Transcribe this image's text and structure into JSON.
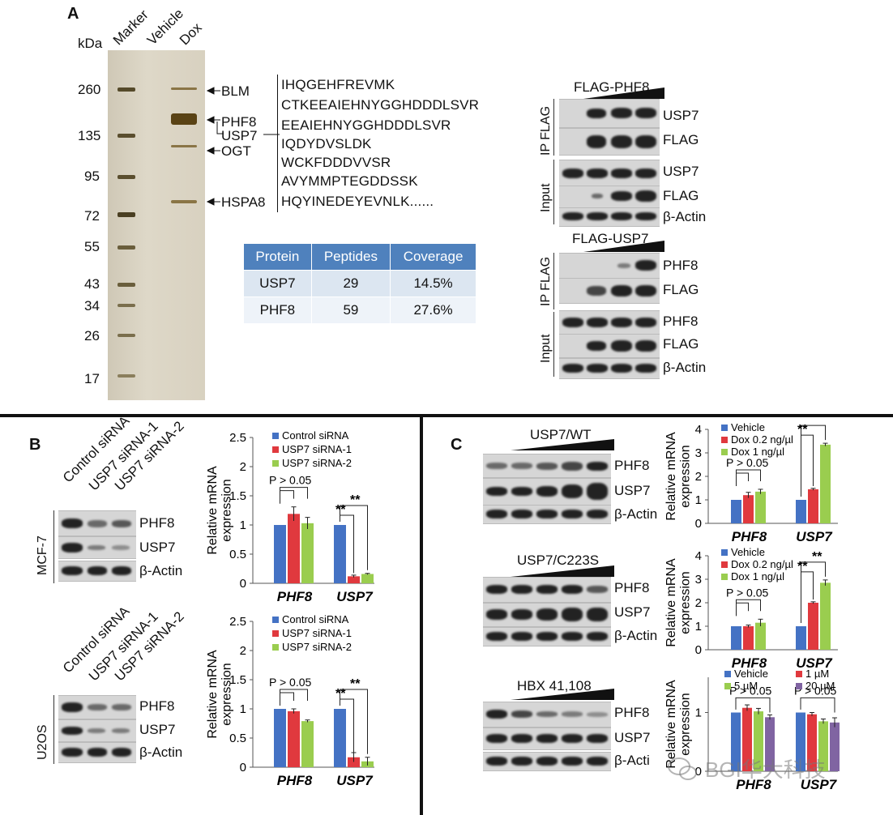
{
  "panelA": {
    "label": "A",
    "kda": "kDa",
    "lanes": [
      "Marker",
      "Vehicle",
      "Dox"
    ],
    "mw": [
      "260",
      "135",
      "95",
      "72",
      "55",
      "43",
      "34",
      "26",
      "17"
    ],
    "bandLabels": [
      "BLM",
      "PHF8",
      "USP7",
      "OGT",
      "HSPA8"
    ],
    "peptides": [
      "IHQGEHFREVMK",
      "CTKEEAIEHNYGGHDDDLSVR",
      "EEAIEHNYGGHDDDLSVR",
      "IQDYDVSLDK",
      "WCKFDDDVVSR",
      "AVYMMPTEGDDSSK",
      "HQYINEDEYEVNLK......"
    ],
    "table": {
      "headers": [
        "Protein",
        "Peptides",
        "Coverage"
      ],
      "rows": [
        [
          "USP7",
          "29",
          "14.5%"
        ],
        [
          "PHF8",
          "59",
          "27.6%"
        ]
      ]
    },
    "ip1": {
      "title": "FLAG-PHF8",
      "ipLabel": "IP FLAG",
      "inputLabel": "Input",
      "ipBands": [
        "USP7",
        "FLAG"
      ],
      "inputBands": [
        "USP7",
        "FLAG",
        "β-Actin"
      ]
    },
    "ip2": {
      "title": "FLAG-USP7",
      "ipLabel": "IP FLAG",
      "inputLabel": "Input",
      "ipBands": [
        "PHF8",
        "FLAG"
      ],
      "inputBands": [
        "PHF8",
        "FLAG",
        "β-Actin"
      ]
    }
  },
  "panelB": {
    "label": "B",
    "lanes": [
      "Control siRNA",
      "USP7 siRNA-1",
      "USP7 siRNA-2"
    ],
    "cell1": "MCF-7",
    "cell2": "U2OS",
    "blotBands": [
      "PHF8",
      "USP7",
      "β-Actin"
    ]
  },
  "panelC": {
    "label": "C",
    "blot1": {
      "title": "USP7/WT",
      "bands": [
        "PHF8",
        "USP7",
        "β-Actin"
      ]
    },
    "blot2": {
      "title": "USP7/C223S",
      "bands": [
        "PHF8",
        "USP7",
        "β-Actin"
      ]
    },
    "blot3": {
      "title": "HBX 41,108",
      "bands": [
        "PHF8",
        "USP7",
        "β-Acti"
      ]
    }
  },
  "watermark": "BGI华大科技",
  "chart_data": [
    {
      "id": "B1",
      "type": "bar",
      "ylabel": "Relative mRNA expression",
      "categories": [
        "PHF8",
        "USP7"
      ],
      "series": [
        {
          "name": "Control siRNA",
          "color": "#4472c4",
          "values": [
            1.0,
            1.0
          ],
          "err": [
            0.0,
            0.0
          ]
        },
        {
          "name": "USP7 siRNA-1",
          "color": "#e0393e",
          "values": [
            1.19,
            0.12
          ],
          "err": [
            0.12,
            0.02
          ]
        },
        {
          "name": "USP7 siRNA-2",
          "color": "#9acd4f",
          "values": [
            1.03,
            0.16
          ],
          "err": [
            0.1,
            0.01
          ]
        }
      ],
      "ylim": [
        0,
        2.5
      ],
      "yticks": [
        "0",
        "0.5",
        "1",
        "1.5",
        "2",
        "2.5"
      ],
      "annotations": [
        "P > 0.05",
        "**",
        "**"
      ]
    },
    {
      "id": "B2",
      "type": "bar",
      "ylabel": "Relative mRNA expression",
      "categories": [
        "PHF8",
        "USP7"
      ],
      "series": [
        {
          "name": "Control siRNA",
          "color": "#4472c4",
          "values": [
            1.0,
            1.0
          ],
          "err": [
            0.0,
            0.0
          ]
        },
        {
          "name": "USP7 siRNA-1",
          "color": "#e0393e",
          "values": [
            0.96,
            0.17
          ],
          "err": [
            0.04,
            0.08
          ]
        },
        {
          "name": "USP7 siRNA-2",
          "color": "#9acd4f",
          "values": [
            0.79,
            0.1
          ],
          "err": [
            0.02,
            0.07
          ]
        }
      ],
      "ylim": [
        0,
        2.5
      ],
      "yticks": [
        "0",
        "0.5",
        "1",
        "1.5",
        "2",
        "2.5"
      ],
      "annotations": [
        "P > 0.05",
        "**",
        "**"
      ]
    },
    {
      "id": "C1",
      "type": "bar",
      "ylabel": "Relative mRNA expression",
      "categories": [
        "PHF8",
        "USP7"
      ],
      "series": [
        {
          "name": "Vehicle",
          "color": "#4472c4",
          "values": [
            1.0,
            1.0
          ],
          "err": [
            0.0,
            0.0
          ]
        },
        {
          "name": "Dox 0.2 ng/µl",
          "color": "#e0393e",
          "values": [
            1.2,
            1.45
          ],
          "err": [
            0.12,
            0.04
          ]
        },
        {
          "name": "Dox 1 ng/µl",
          "color": "#9acd4f",
          "values": [
            1.35,
            3.35
          ],
          "err": [
            0.1,
            0.06
          ]
        }
      ],
      "ylim": [
        0,
        4
      ],
      "yticks": [
        "0",
        "1",
        "2",
        "3",
        "4"
      ],
      "annotations": [
        "P > 0.05",
        "**",
        "**"
      ]
    },
    {
      "id": "C2",
      "type": "bar",
      "ylabel": "Relative mRNA expression",
      "categories": [
        "PHF8",
        "USP7"
      ],
      "series": [
        {
          "name": "Vehicle",
          "color": "#4472c4",
          "values": [
            1.0,
            1.0
          ],
          "err": [
            0.0,
            0.0
          ]
        },
        {
          "name": "Dox 0.2 ng/µl",
          "color": "#e0393e",
          "values": [
            1.0,
            2.0
          ],
          "err": [
            0.05,
            0.04
          ]
        },
        {
          "name": "Dox 1 ng/µl",
          "color": "#9acd4f",
          "values": [
            1.15,
            2.85
          ],
          "err": [
            0.15,
            0.12
          ]
        }
      ],
      "ylim": [
        0,
        4
      ],
      "yticks": [
        "0",
        "1",
        "2",
        "3",
        "4"
      ],
      "annotations": [
        "P > 0.05",
        "**",
        "**"
      ]
    },
    {
      "id": "C3",
      "type": "bar",
      "ylabel": "Relative mRNA expression",
      "categories": [
        "PHF8",
        "USP7"
      ],
      "series": [
        {
          "name": "Vehicle",
          "color": "#4472c4",
          "values": [
            1.0,
            1.0
          ],
          "err": [
            0.0,
            0.0
          ]
        },
        {
          "name": "1 µM",
          "color": "#e0393e",
          "values": [
            1.08,
            0.97
          ],
          "err": [
            0.05,
            0.03
          ]
        },
        {
          "name": "5 µM",
          "color": "#9acd4f",
          "values": [
            1.02,
            0.85
          ],
          "err": [
            0.05,
            0.04
          ]
        },
        {
          "name": "20 µM",
          "color": "#8064a2",
          "values": [
            0.92,
            0.83
          ],
          "err": [
            0.04,
            0.08
          ]
        }
      ],
      "ylim": [
        0,
        1.6
      ],
      "yticks": [
        "0",
        "1"
      ],
      "annotations": [
        "P > 0.05",
        "P > 0.05"
      ]
    }
  ]
}
